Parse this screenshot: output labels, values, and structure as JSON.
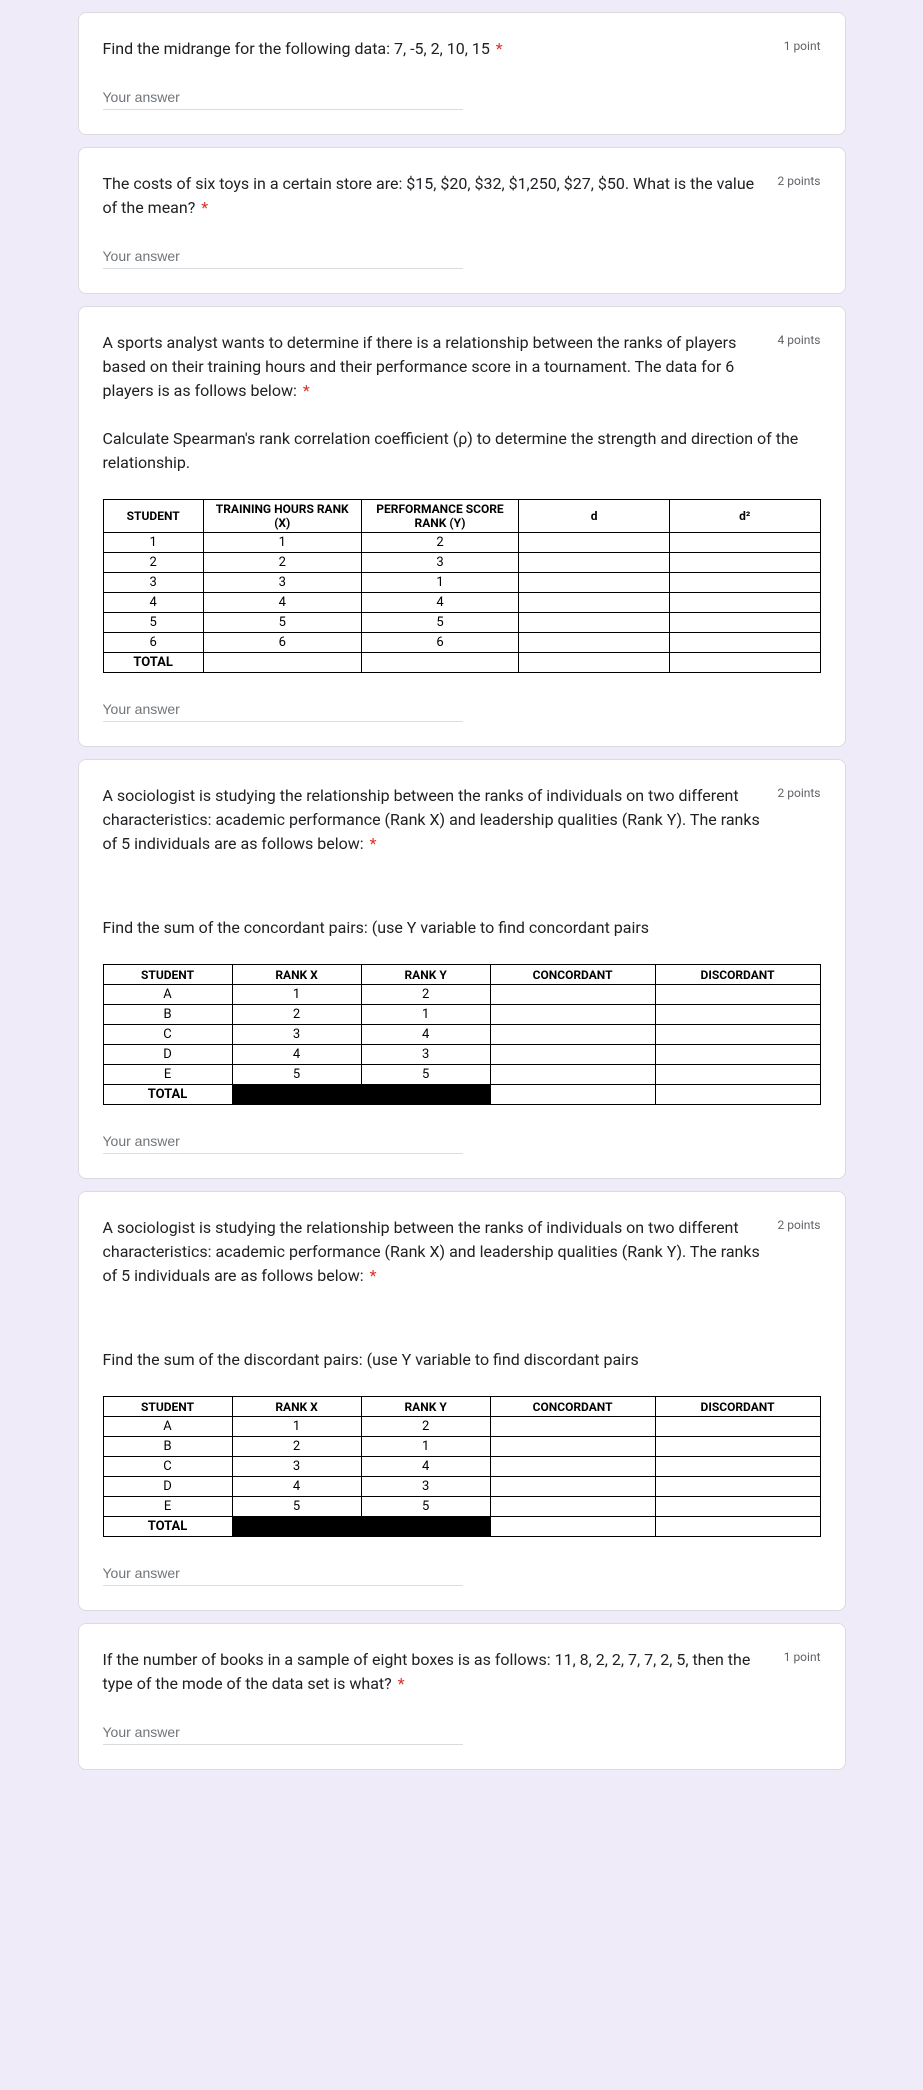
{
  "placeholder": "Your answer",
  "required_mark": "*",
  "q1": {
    "text": "Find the midrange for the following data: 7, -5, 2, 10, 15",
    "points": "1 point"
  },
  "q2": {
    "text": "The costs of six toys in a certain store are: $15, $20, $32, $1,250, $27, $50. What is the value of the mean?",
    "points": "2 points"
  },
  "q3": {
    "text": "A sports analyst wants to determine if there is a relationship between the ranks of players based on their training hours and their performance score in a tournament. The data for 6 players is as follows below:",
    "desc": "Calculate Spearman's rank correlation coefficient (ρ) to determine the strength and direction of the relationship.",
    "points": "4 points",
    "table": {
      "headers": [
        "STUDENT",
        "TRAINING HOURS RANK (X)",
        "PERFORMANCE SCORE RANK (Y)",
        "d",
        "d²"
      ],
      "rows": [
        [
          "1",
          "1",
          "2",
          "",
          ""
        ],
        [
          "2",
          "2",
          "3",
          "",
          ""
        ],
        [
          "3",
          "3",
          "1",
          "",
          ""
        ],
        [
          "4",
          "4",
          "4",
          "",
          ""
        ],
        [
          "5",
          "5",
          "5",
          "",
          ""
        ],
        [
          "6",
          "6",
          "6",
          "",
          ""
        ]
      ],
      "total": "TOTAL"
    }
  },
  "q4": {
    "text": "A sociologist is studying the relationship between the ranks of individuals on two different characteristics: academic performance (Rank X) and leadership qualities (Rank Y). The ranks of 5 individuals are as follows below:",
    "desc": "Find the sum of the concordant pairs: (use Y variable to find concordant pairs",
    "points": "2 points",
    "table": {
      "headers": [
        "STUDENT",
        "RANK X",
        "RANK Y",
        "CONCORDANT",
        "DISCORDANT"
      ],
      "rows": [
        [
          "A",
          "1",
          "2",
          "",
          ""
        ],
        [
          "B",
          "2",
          "1",
          "",
          ""
        ],
        [
          "C",
          "3",
          "4",
          "",
          ""
        ],
        [
          "D",
          "4",
          "3",
          "",
          ""
        ],
        [
          "E",
          "5",
          "5",
          "",
          ""
        ]
      ],
      "total": "TOTAL"
    }
  },
  "q5": {
    "text": "A sociologist is studying the relationship between the ranks of individuals on two different characteristics: academic performance (Rank X) and leadership qualities (Rank Y). The ranks of 5 individuals are as follows below:",
    "desc": "Find the sum of the discordant pairs: (use Y variable to find discordant pairs",
    "points": "2 points",
    "table": {
      "headers": [
        "STUDENT",
        "RANK X",
        "RANK Y",
        "CONCORDANT",
        "DISCORDANT"
      ],
      "rows": [
        [
          "A",
          "1",
          "2",
          "",
          ""
        ],
        [
          "B",
          "2",
          "1",
          "",
          ""
        ],
        [
          "C",
          "3",
          "4",
          "",
          ""
        ],
        [
          "D",
          "4",
          "3",
          "",
          ""
        ],
        [
          "E",
          "5",
          "5",
          "",
          ""
        ]
      ],
      "total": "TOTAL"
    }
  },
  "q6": {
    "text": "If the number of books in a sample of eight boxes is as follows: 11, 8, 2, 2, 7, 7, 2, 5, then the type of the mode of the data set is what?",
    "points": "1 point"
  }
}
